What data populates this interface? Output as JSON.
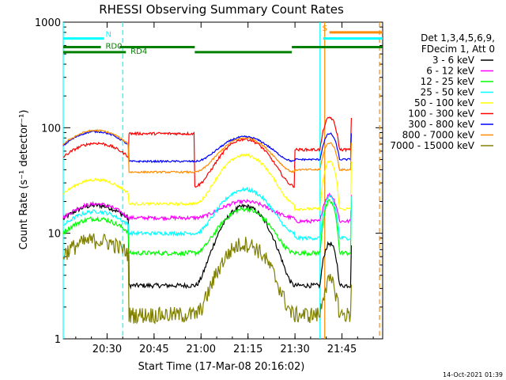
{
  "chart_data": {
    "type": "line",
    "title": "RHESSI Observing Summary Count Rates",
    "xlabel": "Start Time (17-Mar-08 20:16:02)",
    "ylabel": "Count Rate (s⁻¹ detector⁻¹)",
    "x_unit": "minutes after 20:16:02",
    "xlim": [
      0,
      102
    ],
    "ylim": [
      1,
      1000
    ],
    "y_scale": "log",
    "x_ticks": [
      {
        "at": 14,
        "label": "20:30"
      },
      {
        "at": 29,
        "label": "20:45"
      },
      {
        "at": 44,
        "label": "21:00"
      },
      {
        "at": 59,
        "label": "21:15"
      },
      {
        "at": 74,
        "label": "21:30"
      },
      {
        "at": 89,
        "label": "21:45"
      }
    ],
    "y_ticks": [
      1,
      10,
      100,
      1000
    ],
    "y_tick_labels": [
      "1",
      "10",
      "100",
      "1000"
    ],
    "legend_header": [
      "Det 1,3,4,5,6,9,",
      "FDecim 1, Att 0"
    ],
    "legend_position": "right",
    "stamp": "14-Oct-2021 01:39",
    "segments": [
      0,
      21,
      42,
      74,
      82,
      92
    ],
    "series": [
      {
        "name": "3 - 6 keV",
        "color": "#000000",
        "level": [
          16,
          3.2,
          3.2,
          18,
          3.2,
          8,
          28
        ],
        "min": 2.8,
        "max": 45,
        "noise": 0.05
      },
      {
        "name": "6 - 12 keV",
        "color": "#ff00ff",
        "level": [
          16.5,
          14,
          14,
          20,
          13,
          23,
          30
        ],
        "min": 8,
        "max": 45,
        "noise": 0.04
      },
      {
        "name": "12 - 25 keV",
        "color": "#00ff00",
        "level": [
          12,
          6.5,
          6.5,
          17,
          6.5,
          20,
          28
        ],
        "min": 5,
        "max": 45,
        "noise": 0.05
      },
      {
        "name": "25 - 50 keV",
        "color": "#00ffff",
        "level": [
          14,
          10,
          10,
          26,
          9,
          22,
          32
        ],
        "min": 5.5,
        "max": 45,
        "noise": 0.04
      },
      {
        "name": "50 - 100 keV",
        "color": "#ffff00",
        "level": [
          28,
          19,
          19,
          55,
          17,
          48,
          62
        ],
        "min": 10,
        "max": 90,
        "noise": 0.03
      },
      {
        "name": "100 - 300 keV",
        "color": "#ff0000",
        "level": [
          62,
          88,
          28,
          78,
          62,
          125,
          140
        ],
        "min": 20,
        "max": 200,
        "noise": 0.03
      },
      {
        "name": "300 - 800 keV",
        "color": "#0000ff",
        "level": [
          80,
          48,
          48,
          82,
          50,
          88,
          95
        ],
        "min": 30,
        "max": 200,
        "noise": 0.02
      },
      {
        "name": "800 - 7000 keV",
        "color": "#ff8c00",
        "level": [
          82,
          38,
          38,
          80,
          40,
          72,
          85
        ],
        "min": 25,
        "max": 200,
        "noise": 0.02
      },
      {
        "name": "7000 - 15000 keV",
        "color": "#808000",
        "level": [
          7.5,
          1.7,
          1.7,
          8,
          1.7,
          3.5,
          5.5
        ],
        "min": 1,
        "max": 12,
        "noise": 0.18
      }
    ],
    "flags": [
      {
        "label": "N",
        "color": "#00ffff",
        "y": 700,
        "x0": 0,
        "x1": 13
      },
      {
        "label": "RD0",
        "color": "#008000",
        "y": 580,
        "x0": 0,
        "x1": 12
      },
      {
        "label": "RD4",
        "color": "#008000",
        "y": 520,
        "x0": 0,
        "x1": 20
      },
      {
        "label": "",
        "color": "#008000",
        "y": 580,
        "x0": 18,
        "x1": 42
      },
      {
        "label": "",
        "color": "#008000",
        "y": 520,
        "x0": 42,
        "x1": 73
      },
      {
        "label": "",
        "color": "#008000",
        "y": 580,
        "x0": 73,
        "x1": 102
      },
      {
        "label": "S",
        "color": "#ff8c00",
        "y": 800,
        "x0": 85,
        "x1": 102
      },
      {
        "label": "",
        "color": "#00ffff",
        "y": 700,
        "x0": 83,
        "x1": 102
      }
    ],
    "vlines": [
      {
        "at": 0,
        "color": "#00ffff",
        "dashed": false
      },
      {
        "at": 19,
        "color": "#00ffff",
        "dashed": true
      },
      {
        "at": 82,
        "color": "#00ffff",
        "dashed": false
      },
      {
        "at": 83.5,
        "color": "#ff8c00",
        "dashed": false
      },
      {
        "at": 101,
        "color": "#ff8c00",
        "dashed": true
      }
    ]
  }
}
